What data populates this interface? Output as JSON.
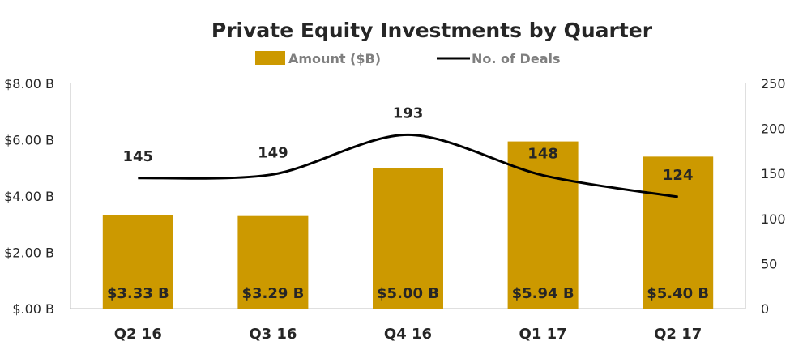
{
  "chart_data": {
    "type": "bar",
    "title": "Private Equity Investments by Quarter",
    "categories": [
      "Q2 16",
      "Q3 16",
      "Q4 16",
      "Q1 17",
      "Q2 17"
    ],
    "series": [
      {
        "name": "Amount ($B)",
        "type": "bar",
        "axis": "left",
        "color": "#cc9900",
        "values": [
          3.33,
          3.29,
          5.0,
          5.94,
          5.4
        ],
        "labels": [
          "$3.33 B",
          "$3.29 B",
          "$5.00 B",
          "$5.94 B",
          "$5.40 B"
        ]
      },
      {
        "name": "No. of Deals",
        "type": "line",
        "axis": "right",
        "color": "#000000",
        "values": [
          145,
          149,
          193,
          148,
          124
        ],
        "labels": [
          "145",
          "149",
          "193",
          "148",
          "124"
        ]
      }
    ],
    "y_left": {
      "range": [
        0,
        8
      ],
      "ticks": [
        0,
        2,
        4,
        6,
        8
      ],
      "tick_labels": [
        "$.00 B",
        "$2.00 B",
        "$4.00 B",
        "$6.00 B",
        "$8.00 B"
      ]
    },
    "y_right": {
      "range": [
        0,
        250
      ],
      "ticks": [
        0,
        50,
        100,
        150,
        200,
        250
      ],
      "tick_labels": [
        "0",
        "50",
        "100",
        "150",
        "200",
        "250"
      ]
    },
    "xlabel": "",
    "ylabel": "",
    "grid": false,
    "legend": "top-center"
  }
}
